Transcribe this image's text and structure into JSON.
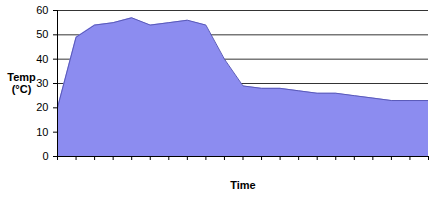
{
  "chart_data": {
    "type": "area",
    "x_label": "Time",
    "y_label": "Temp\n(°C)",
    "x": [
      0,
      1,
      2,
      3,
      4,
      5,
      6,
      7,
      8,
      9,
      10,
      11,
      12,
      13,
      14,
      15,
      16,
      17,
      18,
      19,
      20
    ],
    "values": [
      20,
      49,
      54,
      55,
      57,
      54,
      55,
      56,
      54,
      40,
      29,
      28,
      28,
      27,
      26,
      26,
      25,
      24,
      23,
      23,
      23
    ],
    "color": "#8c8cf0",
    "xlim": [
      0,
      20
    ],
    "xticks": [
      0,
      1,
      2,
      3,
      4,
      5,
      6,
      7,
      8,
      9,
      10,
      11,
      12,
      13,
      14,
      15,
      16,
      17,
      18,
      19,
      20
    ],
    "ylim": [
      0,
      60
    ],
    "yticks": [
      0,
      10,
      20,
      30,
      40,
      50,
      60
    ],
    "grid": true,
    "tick_labels": "y"
  }
}
